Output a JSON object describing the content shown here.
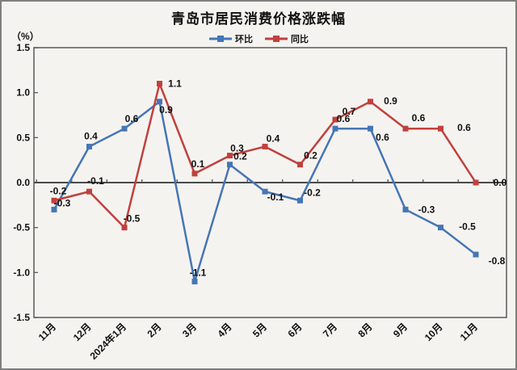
{
  "title": "青岛市居民消费价格涨跌幅",
  "y_unit": "（%）",
  "legend": {
    "items": [
      {
        "label": "环比",
        "color": "#4576B5"
      },
      {
        "label": "同比",
        "color": "#C0413D"
      }
    ]
  },
  "chart_data": {
    "type": "line",
    "title": "青岛市居民消费价格涨跌幅",
    "xlabel": "",
    "ylabel": "（%）",
    "categories": [
      "11月",
      "12月",
      "2024年1月",
      "2月",
      "3月",
      "4月",
      "5月",
      "6月",
      "7月",
      "8月",
      "9月",
      "10月",
      "11月"
    ],
    "ylim": [
      -1.5,
      1.5
    ],
    "ytick_step": 0.5,
    "yticks": [
      1.5,
      1.0,
      0.5,
      0.0,
      -0.5,
      -1.0,
      -1.5
    ],
    "grid": false,
    "legend_position": "top-center",
    "marker": "square",
    "axis_color": "#595959",
    "zero_line_color": "#4a4a4a",
    "label_color": "#111111",
    "series": [
      {
        "name": "环比",
        "color": "#4576B5",
        "values": [
          -0.3,
          0.4,
          0.6,
          0.9,
          -1.1,
          0.2,
          -0.1,
          -0.2,
          0.6,
          0.6,
          -0.3,
          -0.5,
          -0.8
        ],
        "label_offsets": [
          [
            10,
            -4
          ],
          [
            2,
            -9
          ],
          [
            9,
            -8
          ],
          [
            8,
            14
          ],
          [
            4,
            -7
          ],
          [
            13,
            -6
          ],
          [
            13,
            11
          ],
          [
            15,
            -6
          ],
          [
            10,
            -8
          ],
          [
            15,
            15
          ],
          [
            26,
            4
          ],
          [
            33,
            3
          ],
          [
            26,
            12
          ]
        ]
      },
      {
        "name": "同比",
        "color": "#C0413D",
        "values": [
          -0.2,
          -0.1,
          -0.5,
          1.1,
          0.1,
          0.3,
          0.4,
          0.2,
          0.7,
          0.9,
          0.6,
          0.6,
          0.0
        ],
        "label_offsets": [
          [
            5,
            -8
          ],
          [
            8,
            -9
          ],
          [
            9,
            -7
          ],
          [
            19,
            4
          ],
          [
            4,
            -8
          ],
          [
            9,
            -5
          ],
          [
            10,
            -6
          ],
          [
            13,
            -7
          ],
          [
            17,
            -6
          ],
          [
            25,
            3
          ],
          [
            16,
            -9
          ],
          [
            29,
            3
          ],
          [
            30,
            4
          ]
        ]
      }
    ]
  }
}
